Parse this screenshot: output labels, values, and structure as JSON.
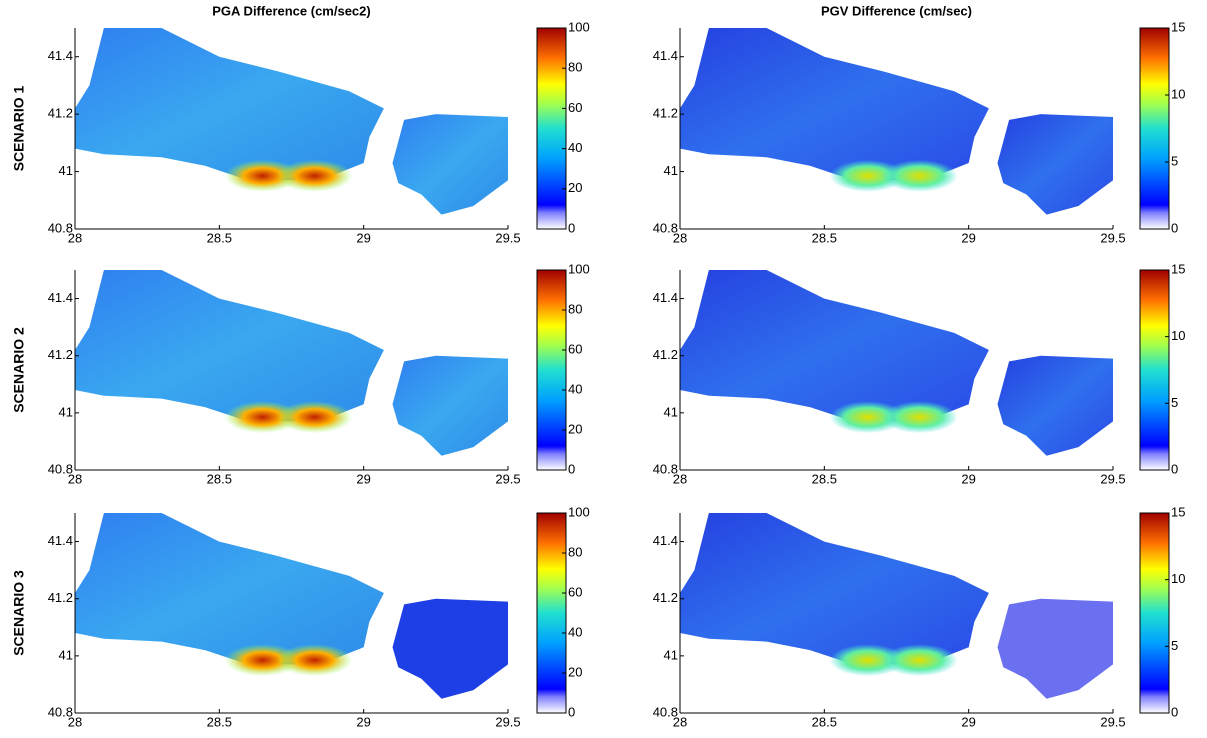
{
  "chart_data": [
    {
      "type": "heatmap",
      "title": "PGA Difference (cm/sec2)",
      "ylabel": "SCENARIO 1",
      "colormap": "jet",
      "xlim": [
        28,
        29.5
      ],
      "ylim": [
        40.8,
        41.5
      ],
      "xticks": [
        28,
        28.5,
        29,
        29.5
      ],
      "yticks": [
        40.8,
        41,
        41.2,
        41.4
      ],
      "clim": [
        0,
        100
      ],
      "cticks": [
        0,
        20,
        40,
        60,
        80,
        100
      ]
    },
    {
      "type": "heatmap",
      "title": "PGV Difference (cm/sec)",
      "colormap": "jet",
      "xlim": [
        28,
        29.5
      ],
      "ylim": [
        40.8,
        41.5
      ],
      "xticks": [
        28,
        28.5,
        29,
        29.5
      ],
      "yticks": [
        40.8,
        41,
        41.2,
        41.4
      ],
      "clim": [
        0,
        15
      ],
      "cticks": [
        0,
        5,
        10,
        15
      ]
    },
    {
      "type": "heatmap",
      "ylabel": "SCENARIO 2",
      "colormap": "jet",
      "xlim": [
        28,
        29.5
      ],
      "ylim": [
        40.8,
        41.5
      ],
      "xticks": [
        28,
        28.5,
        29,
        29.5
      ],
      "yticks": [
        40.8,
        41,
        41.2,
        41.4
      ],
      "clim": [
        0,
        100
      ],
      "cticks": [
        0,
        20,
        40,
        60,
        80,
        100
      ]
    },
    {
      "type": "heatmap",
      "colormap": "jet",
      "xlim": [
        28,
        29.5
      ],
      "ylim": [
        40.8,
        41.5
      ],
      "xticks": [
        28,
        28.5,
        29,
        29.5
      ],
      "yticks": [
        40.8,
        41,
        41.2,
        41.4
      ],
      "clim": [
        0,
        15
      ],
      "cticks": [
        0,
        5,
        10,
        15
      ]
    },
    {
      "type": "heatmap",
      "ylabel": "SCENARIO 3",
      "colormap": "jet",
      "xlim": [
        28,
        29.5
      ],
      "ylim": [
        40.8,
        41.5
      ],
      "xticks": [
        28,
        28.5,
        29,
        29.5
      ],
      "yticks": [
        40.8,
        41,
        41.2,
        41.4
      ],
      "clim": [
        0,
        100
      ],
      "cticks": [
        0,
        20,
        40,
        60,
        80,
        100
      ]
    },
    {
      "type": "heatmap",
      "colormap": "jet",
      "xlim": [
        28,
        29.5
      ],
      "ylim": [
        40.8,
        41.5
      ],
      "xticks": [
        28,
        28.5,
        29,
        29.5
      ],
      "yticks": [
        40.8,
        41,
        41.2,
        41.4
      ],
      "clim": [
        0,
        15
      ],
      "cticks": [
        0,
        5,
        10,
        15
      ]
    }
  ]
}
